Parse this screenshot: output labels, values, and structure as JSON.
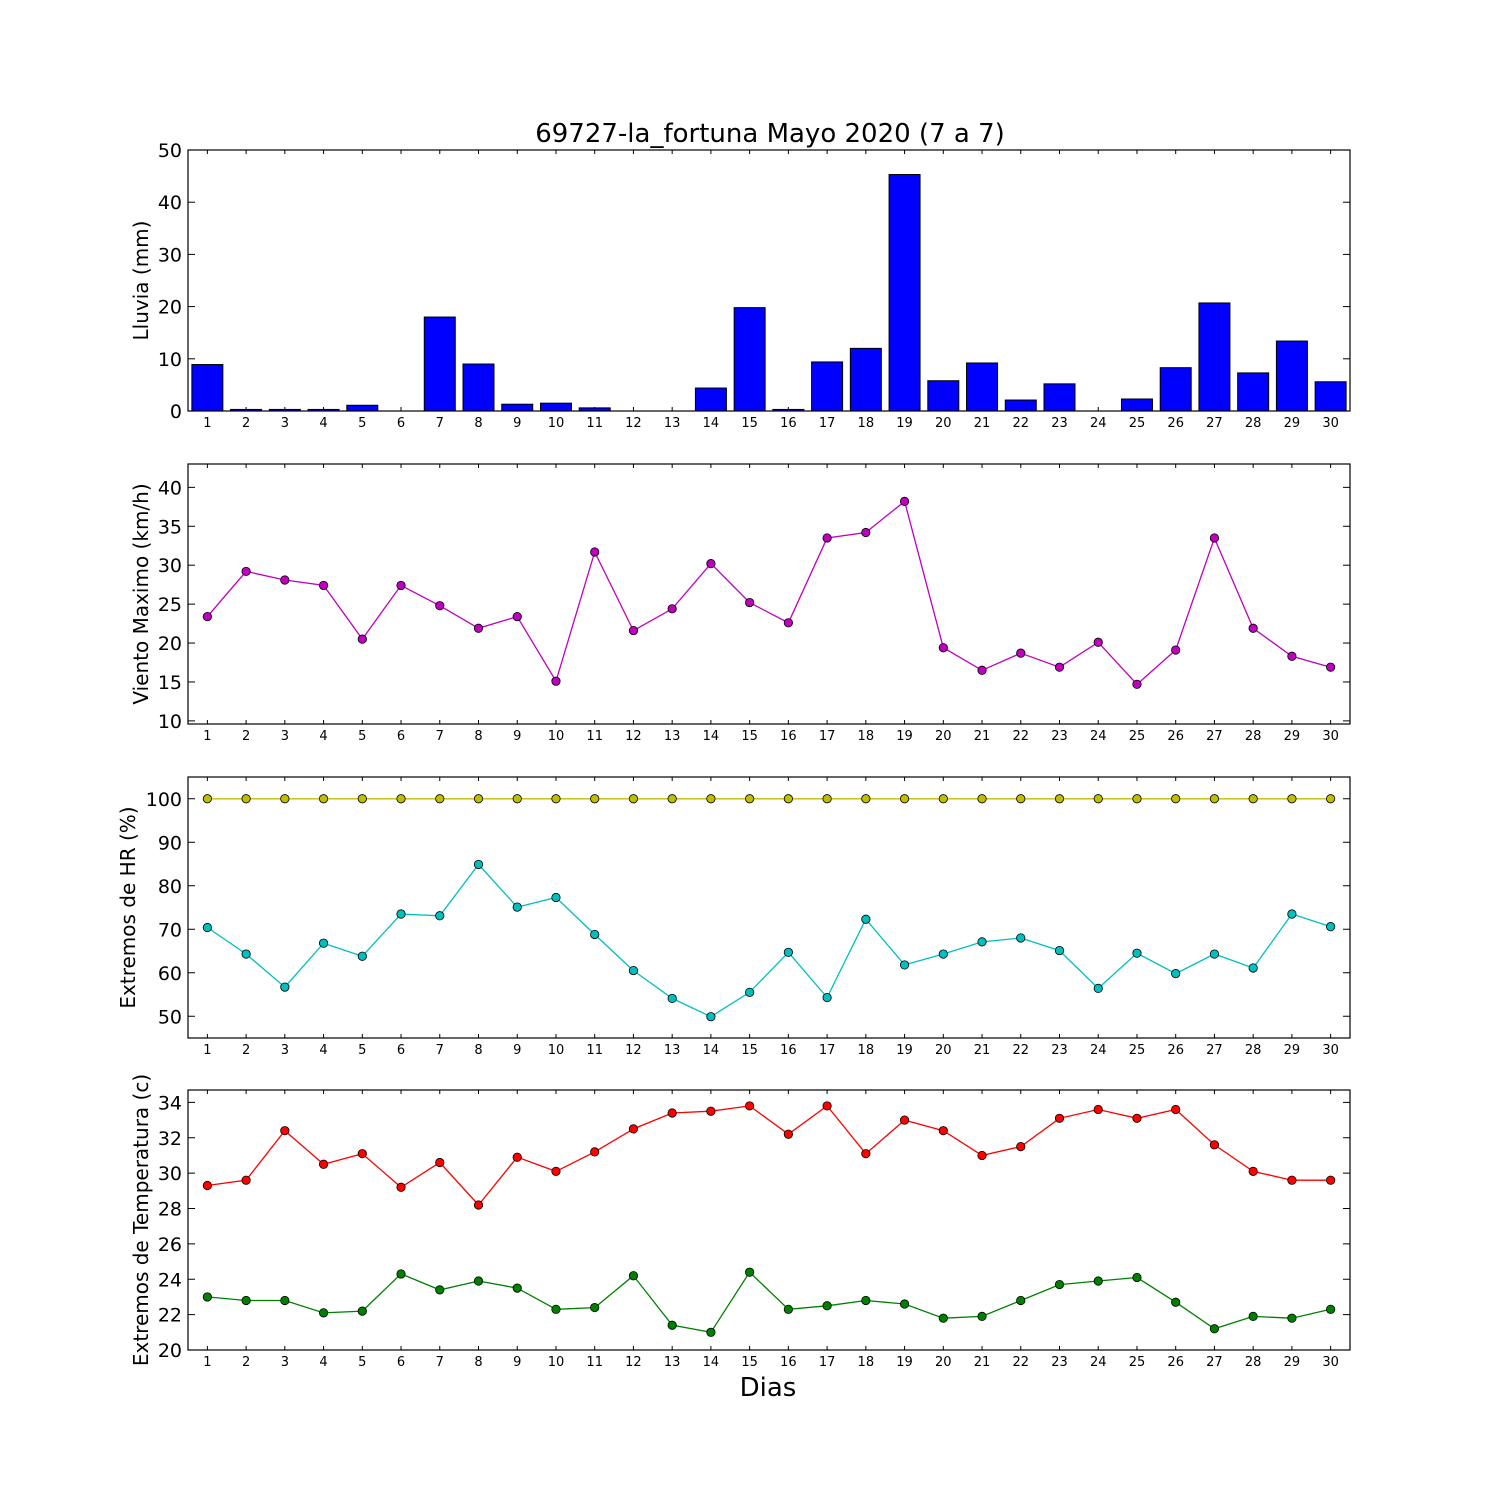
{
  "title": "69727-la_fortuna Mayo 2020  (7 a 7)",
  "xlabel": "Dias",
  "colors": {
    "rain": "#0000ff",
    "wind": "#bf00bf",
    "hr_max": "#bfbf00",
    "hr_min": "#00bfbf",
    "t_max": "#ff0000",
    "t_min": "#008000"
  },
  "chart_data": [
    {
      "type": "bar",
      "ylabel": "Lluvia (mm)",
      "ylim": [
        0,
        50
      ],
      "yticks": [
        0,
        10,
        20,
        30,
        40,
        50
      ],
      "categories": [
        "1",
        "2",
        "3",
        "4",
        "5",
        "6",
        "7",
        "8",
        "9",
        "10",
        "11",
        "12",
        "13",
        "14",
        "15",
        "16",
        "17",
        "18",
        "19",
        "20",
        "21",
        "22",
        "23",
        "24",
        "25",
        "26",
        "27",
        "28",
        "29",
        "30"
      ],
      "series": [
        {
          "color_key": "rain",
          "values": [
            8.9,
            0.3,
            0.3,
            0.3,
            1.1,
            0,
            18.0,
            9.0,
            1.3,
            1.5,
            0.6,
            0,
            0,
            4.4,
            19.8,
            0.3,
            9.4,
            12.0,
            45.3,
            5.8,
            9.2,
            2.1,
            5.2,
            0,
            2.3,
            8.3,
            20.7,
            7.3,
            13.4,
            5.6
          ]
        }
      ]
    },
    {
      "type": "line",
      "ylabel": "Viento Maximo (km/h)",
      "ylim": [
        9.6,
        43
      ],
      "yticks": [
        10,
        15,
        20,
        25,
        30,
        35,
        40
      ],
      "categories": [
        "1",
        "2",
        "3",
        "4",
        "5",
        "6",
        "7",
        "8",
        "9",
        "10",
        "11",
        "12",
        "13",
        "14",
        "15",
        "16",
        "17",
        "18",
        "19",
        "20",
        "21",
        "22",
        "23",
        "24",
        "25",
        "26",
        "27",
        "28",
        "29",
        "30"
      ],
      "series": [
        {
          "color_key": "wind",
          "values": [
            23.4,
            29.2,
            28.1,
            27.4,
            20.5,
            27.4,
            24.8,
            21.9,
            23.4,
            15.1,
            31.7,
            21.6,
            24.4,
            30.2,
            25.2,
            22.6,
            33.5,
            34.2,
            38.2,
            19.4,
            16.5,
            18.7,
            16.9,
            20.1,
            14.7,
            19.1,
            33.5,
            21.9,
            18.3,
            16.9
          ]
        }
      ]
    },
    {
      "type": "line",
      "ylabel": "Extremos de HR (%)",
      "ylim": [
        45,
        105
      ],
      "yticks": [
        50,
        60,
        70,
        80,
        90,
        100
      ],
      "categories": [
        "1",
        "2",
        "3",
        "4",
        "5",
        "6",
        "7",
        "8",
        "9",
        "10",
        "11",
        "12",
        "13",
        "14",
        "15",
        "16",
        "17",
        "18",
        "19",
        "20",
        "21",
        "22",
        "23",
        "24",
        "25",
        "26",
        "27",
        "28",
        "29",
        "30"
      ],
      "series": [
        {
          "color_key": "hr_max",
          "values": [
            100,
            100,
            100,
            100,
            100,
            100,
            100,
            100,
            100,
            100,
            100,
            100,
            100,
            100,
            100,
            100,
            100,
            100,
            100,
            100,
            100,
            100,
            100,
            100,
            100,
            100,
            100,
            100,
            100,
            100
          ]
        },
        {
          "color_key": "hr_min",
          "values": [
            70.4,
            64.3,
            56.7,
            66.8,
            63.8,
            73.5,
            73.1,
            84.9,
            75.1,
            77.3,
            68.8,
            60.5,
            54.1,
            49.9,
            55.5,
            64.7,
            54.3,
            72.3,
            61.8,
            64.3,
            67.1,
            68.0,
            65.1,
            56.4,
            64.5,
            59.8,
            64.3,
            61.1,
            73.5,
            70.6
          ]
        }
      ]
    },
    {
      "type": "line",
      "ylabel": "Extremos de Temperatura (c)",
      "ylim": [
        20,
        34.7
      ],
      "yticks": [
        20,
        22,
        24,
        26,
        28,
        30,
        32,
        34
      ],
      "categories": [
        "1",
        "2",
        "3",
        "4",
        "5",
        "6",
        "7",
        "8",
        "9",
        "10",
        "11",
        "12",
        "13",
        "14",
        "15",
        "16",
        "17",
        "18",
        "19",
        "20",
        "21",
        "22",
        "23",
        "24",
        "25",
        "26",
        "27",
        "28",
        "29",
        "30"
      ],
      "series": [
        {
          "color_key": "t_max",
          "values": [
            29.3,
            29.6,
            32.4,
            30.5,
            31.1,
            29.2,
            30.6,
            28.2,
            30.9,
            30.1,
            31.2,
            32.5,
            33.4,
            33.5,
            33.8,
            32.2,
            33.8,
            31.1,
            33.0,
            32.4,
            31.0,
            31.5,
            33.1,
            33.6,
            33.1,
            33.6,
            31.6,
            30.1,
            29.6,
            29.6
          ]
        },
        {
          "color_key": "t_min",
          "values": [
            23.0,
            22.8,
            22.8,
            22.1,
            22.2,
            24.3,
            23.4,
            23.9,
            23.5,
            22.3,
            22.4,
            24.2,
            21.4,
            21.0,
            24.4,
            22.3,
            22.5,
            22.8,
            22.6,
            21.8,
            21.9,
            22.8,
            23.7,
            23.9,
            24.1,
            22.7,
            21.2,
            21.9,
            21.8,
            22.3
          ]
        }
      ]
    }
  ]
}
